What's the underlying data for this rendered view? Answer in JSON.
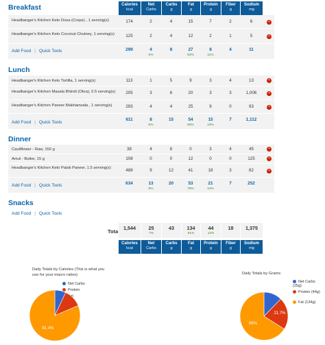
{
  "columns": [
    {
      "name": "Calories",
      "unit": "kcal"
    },
    {
      "name": "Net",
      "unit": "Carbs"
    },
    {
      "name": "Carbs",
      "unit": "g"
    },
    {
      "name": "Fat",
      "unit": "g"
    },
    {
      "name": "Protein",
      "unit": "g"
    },
    {
      "name": "Fiber",
      "unit": "g"
    },
    {
      "name": "Sodium",
      "unit": "mg"
    }
  ],
  "links": {
    "add_food": "Add Food",
    "quick_tools": "Quick Tools",
    "sep": "|"
  },
  "delete_glyph": "−",
  "meals": {
    "breakfast": {
      "title": "Breakfast",
      "rows": [
        {
          "food": "Headbanger's Kitchen Keto Dosa (Crepe) , 1 serving(s)",
          "values": [
            "174",
            "2",
            "4",
            "15",
            "7",
            "2",
            "6"
          ]
        },
        {
          "food": "Headbanger's Kitchen Keto Coconut Chutney, 1 serving(s)",
          "values": [
            "125",
            "2",
            "4",
            "12",
            "2",
            "1",
            "5"
          ]
        }
      ],
      "totals": [
        "299",
        "4",
        "8",
        "27",
        "8",
        "4",
        "11"
      ],
      "pcts": [
        "",
        "6%",
        "",
        "84%",
        "11%",
        "",
        ""
      ]
    },
    "lunch": {
      "title": "Lunch",
      "rows": [
        {
          "food": "Headbanger's Kitchen Keto Tortilla, 1 serving(s)",
          "values": [
            "113",
            "1",
            "5",
            "9",
            "3",
            "4",
            "13"
          ]
        },
        {
          "food": "Headbanger's Kitchen Masala Bhindi (Okra), 0.5 serving(s)",
          "values": [
            "205",
            "3",
            "6",
            "20",
            "3",
            "3",
            "1,006"
          ]
        },
        {
          "food": "Headbanger's Kitchen Paneer Makhanwala , 1 serving(s)",
          "values": [
            "293",
            "4",
            "4",
            "25",
            "9",
            "0",
            "93"
          ]
        }
      ],
      "totals": [
        "611",
        "8",
        "15",
        "54",
        "15",
        "7",
        "1,112"
      ],
      "pcts": [
        "",
        "6%",
        "",
        "80%",
        "10%",
        "",
        ""
      ]
    },
    "dinner": {
      "title": "Dinner",
      "rows": [
        {
          "food": "Cauliflower - Raw, 150 g",
          "values": [
            "38",
            "4",
            "8",
            "0",
            "3",
            "4",
            "45"
          ]
        },
        {
          "food": "Amul - Butter, 15 g",
          "values": [
            "108",
            "0",
            "0",
            "12",
            "0",
            "0",
            "125"
          ]
        },
        {
          "food": "Headbanger's Kitchen Keto Palak Paneer, 1.5 serving(s)",
          "values": [
            "488",
            "9",
            "12",
            "41",
            "18",
            "3",
            "82"
          ]
        }
      ],
      "totals": [
        "634",
        "13",
        "20",
        "53",
        "21",
        "7",
        "252"
      ],
      "pcts": [
        "",
        "8%",
        "",
        "78%",
        "14%",
        "",
        ""
      ]
    },
    "snacks": {
      "title": "Snacks"
    }
  },
  "grand": {
    "label": "Totals",
    "values": [
      "1,544",
      "25",
      "43",
      "134",
      "44",
      "18",
      "1,375"
    ],
    "pcts": [
      "",
      "7%",
      "",
      "81%",
      "12%",
      "",
      ""
    ]
  },
  "pie_calories": {
    "title_line1": "Daily Totals by Calories (This is what you",
    "title_line2": "use for your macro ratios)",
    "legend": [
      "Net Carbs",
      "Protein",
      "Fat"
    ],
    "colors": [
      "#3366cc",
      "#dc3912",
      "#ff9900"
    ],
    "values": [
      7,
      11.6,
      81.4
    ],
    "label_fat": "81.4%"
  },
  "pie_grams": {
    "title": "Daily Totals by Grams",
    "legend": [
      "Net Carbs (25g)",
      "Protein (44g)",
      "Fat (134g)"
    ],
    "colors": [
      "#3366cc",
      "#dc3912",
      "#ff9900"
    ],
    "values": [
      12.3,
      21.7,
      66
    ],
    "label_protein": "21.7%",
    "label_fat": "66%"
  }
}
